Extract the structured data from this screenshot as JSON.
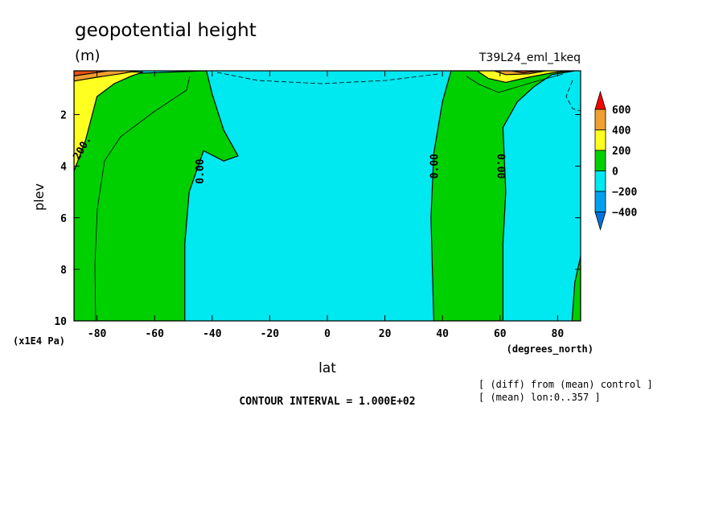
{
  "chart_data": {
    "type": "heatmap",
    "title": "geopotential height",
    "units": "(m)",
    "run_label": "T39L24_eml_1keq",
    "xlabel": "lat",
    "x_unit_label": "(degrees_north)",
    "ylabel": "plev",
    "y_unit_label": "(x1E4 Pa)",
    "xlim": [
      -88,
      88
    ],
    "ylim": [
      0.3,
      10
    ],
    "y_inverted": true,
    "x_ticks": [
      -80,
      -60,
      -40,
      -20,
      0,
      20,
      40,
      60,
      80
    ],
    "x_tick_labels": [
      "-80",
      "-60",
      "-40",
      "-20",
      "0",
      "20",
      "40",
      "60",
      "80"
    ],
    "y_ticks": [
      2,
      4,
      6,
      8,
      10
    ],
    "y_tick_labels": [
      "2",
      "4",
      "6",
      "8",
      "10"
    ],
    "contour_labels": [
      {
        "text": "200.",
        "lat": -85,
        "plev": 3.3
      },
      {
        "text": "0.00",
        "lat": -44,
        "plev": 4.2
      },
      {
        "text": "0.00",
        "lat": 37.5,
        "plev": 4.0
      },
      {
        "text": "0.00",
        "lat": 60,
        "plev": 4.0
      }
    ],
    "zero_contour": [
      {
        "lat": -81,
        "plev": 4.0
      },
      {
        "lat": -46,
        "plev": 4.5
      },
      {
        "lat": 37,
        "plev": 4.0
      },
      {
        "lat": 61,
        "plev": 4.0
      }
    ],
    "regions": [
      {
        "level": "0 to 200",
        "color": "#00d000",
        "points": [
          [
            -88,
            10
          ],
          [
            -88,
            1.0
          ],
          [
            -80,
            0.9
          ],
          [
            -70,
            0.6
          ],
          [
            -66,
            0.4
          ],
          [
            -42,
            0.3
          ],
          [
            -40,
            1.2
          ],
          [
            -36,
            2.6
          ],
          [
            -31,
            3.6
          ],
          [
            -36,
            3.8
          ],
          [
            -43,
            3.4
          ],
          [
            -48,
            5.0
          ],
          [
            -49.5,
            7.0
          ],
          [
            -49.5,
            10
          ]
        ]
      },
      {
        "level": "0 to 200",
        "color": "#00d000",
        "points": [
          [
            37,
            10
          ],
          [
            36,
            6.0
          ],
          [
            37,
            3.5
          ],
          [
            40,
            1.5
          ],
          [
            43,
            0.3
          ],
          [
            86,
            0.3
          ],
          [
            78,
            0.45
          ],
          [
            72,
            0.9
          ],
          [
            66,
            1.5
          ],
          [
            61,
            2.5
          ],
          [
            62,
            5.0
          ],
          [
            61,
            7.0
          ],
          [
            61,
            10
          ]
        ]
      },
      {
        "level": "0 to 200",
        "color": "#00d000",
        "points": [
          [
            88,
            7.5
          ],
          [
            86,
            8.5
          ],
          [
            85,
            10
          ],
          [
            88,
            10
          ]
        ]
      },
      {
        "level": "200 to 400",
        "color": "#ffff20",
        "points": [
          [
            -88,
            4.2
          ],
          [
            -84,
            3.0
          ],
          [
            -80,
            1.3
          ],
          [
            -74,
            0.8
          ],
          [
            -68,
            0.5
          ],
          [
            -64,
            0.35
          ],
          [
            -88,
            0.3
          ]
        ]
      },
      {
        "level": "200 to 400",
        "color": "#ffff20",
        "points": [
          [
            52,
            0.3
          ],
          [
            56,
            0.6
          ],
          [
            62,
            0.75
          ],
          [
            70,
            0.55
          ],
          [
            78,
            0.38
          ],
          [
            84,
            0.3
          ]
        ]
      },
      {
        "level": "400 to 600",
        "color": "#f0a030",
        "points": [
          [
            -88,
            0.7
          ],
          [
            -80,
            0.55
          ],
          [
            -72,
            0.42
          ],
          [
            -66,
            0.3
          ],
          [
            -88,
            0.3
          ]
        ]
      },
      {
        "level": "400 to 600",
        "color": "#f0a030",
        "points": [
          [
            58,
            0.3
          ],
          [
            62,
            0.45
          ],
          [
            70,
            0.42
          ],
          [
            76,
            0.3
          ]
        ]
      },
      {
        "level": "above 600",
        "color": "#e85010",
        "points": [
          [
            -88,
            0.5
          ],
          [
            -82,
            0.4
          ],
          [
            -76,
            0.3
          ],
          [
            -88,
            0.3
          ]
        ]
      },
      {
        "level": "above 600",
        "color": "#e85010",
        "points": [
          [
            64,
            0.3
          ],
          [
            68,
            0.38
          ],
          [
            74,
            0.3
          ]
        ]
      }
    ],
    "background_level": "-200 to 0",
    "background_color": "#00e8f0",
    "colorbar": {
      "labels": [
        "600",
        "400",
        "200",
        "0",
        "−200",
        "−400"
      ],
      "colors": [
        "#ff0000",
        "#f0a030",
        "#ffff20",
        "#00d000",
        "#00e8f0",
        "#00a0f0",
        "#0070e0"
      ]
    },
    "footer": {
      "contour_interval": "CONTOUR INTERVAL = 1.000E+02",
      "note1": "[ (diff) from (mean) control ]",
      "note2": "[ (mean) lon:0..357 ]"
    }
  }
}
